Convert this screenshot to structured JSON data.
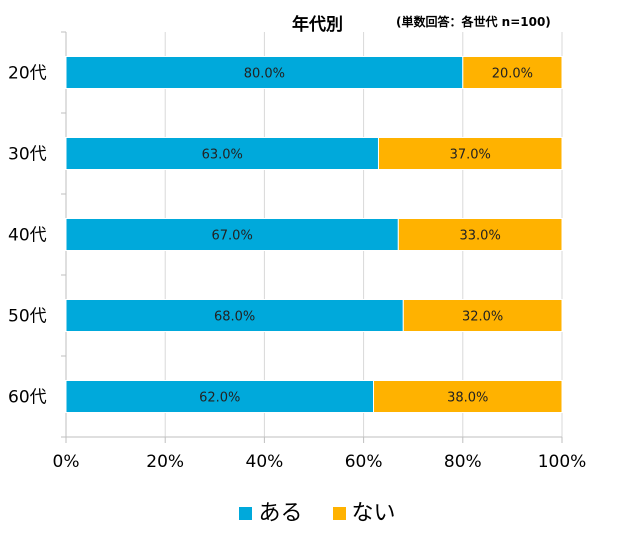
{
  "chart_data": {
    "type": "bar",
    "orientation": "horizontal",
    "stacked": true,
    "title": "年代別",
    "subtitle": "(単数回答：各世代 n=100)",
    "categories": [
      "20代",
      "30代",
      "40代",
      "50代",
      "60代"
    ],
    "series": [
      {
        "name": "ある",
        "color": "#00A9DB",
        "values": [
          80.0,
          63.0,
          67.0,
          68.0,
          62.0
        ]
      },
      {
        "name": "ない",
        "color": "#FFB200",
        "values": [
          20.0,
          37.0,
          33.0,
          32.0,
          38.0
        ]
      }
    ],
    "data_labels": [
      [
        "80.0%",
        "63.0%",
        "67.0%",
        "68.0%",
        "62.0%"
      ],
      [
        "20.0%",
        "37.0%",
        "33.0%",
        "32.0%",
        "38.0%"
      ]
    ],
    "xlim": [
      0,
      100
    ],
    "xticks": [
      "0%",
      "20%",
      "40%",
      "60%",
      "80%",
      "100%"
    ],
    "grid": true,
    "legend_position": "bottom"
  }
}
